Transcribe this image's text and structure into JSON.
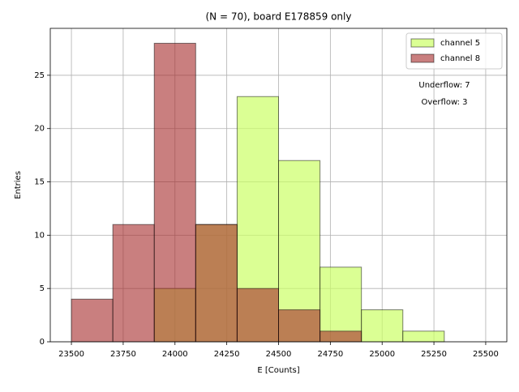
{
  "chart_data": {
    "type": "histogram",
    "title": "(N = 70), board E178859 only",
    "x_label": "E [Counts]",
    "y_label": "Entries",
    "bins": [
      23500,
      23700,
      23900,
      24100,
      24300,
      24500,
      24700,
      24900,
      25100,
      25300,
      25500
    ],
    "series": [
      {
        "name": "channel 5",
        "color": "#ccff66",
        "opacity": 0.7,
        "values": [
          0,
          0,
          5,
          11,
          23,
          17,
          7,
          3,
          1,
          0
        ]
      },
      {
        "name": "channel 8",
        "color": "#a52a2a",
        "opacity": 0.6,
        "values": [
          4,
          11,
          28,
          11,
          5,
          3,
          1,
          0,
          0,
          0
        ]
      }
    ],
    "annotations": [
      "Underflow: 7",
      "Overflow: 3"
    ],
    "xlim": [
      23398,
      25602
    ],
    "ylim": [
      0,
      29.4
    ],
    "xticks": [
      23500,
      23750,
      24000,
      24250,
      24500,
      24750,
      25000,
      25250,
      25500
    ],
    "yticks": [
      0,
      5,
      10,
      15,
      20,
      25
    ],
    "grid": true,
    "legend": "upper right"
  }
}
